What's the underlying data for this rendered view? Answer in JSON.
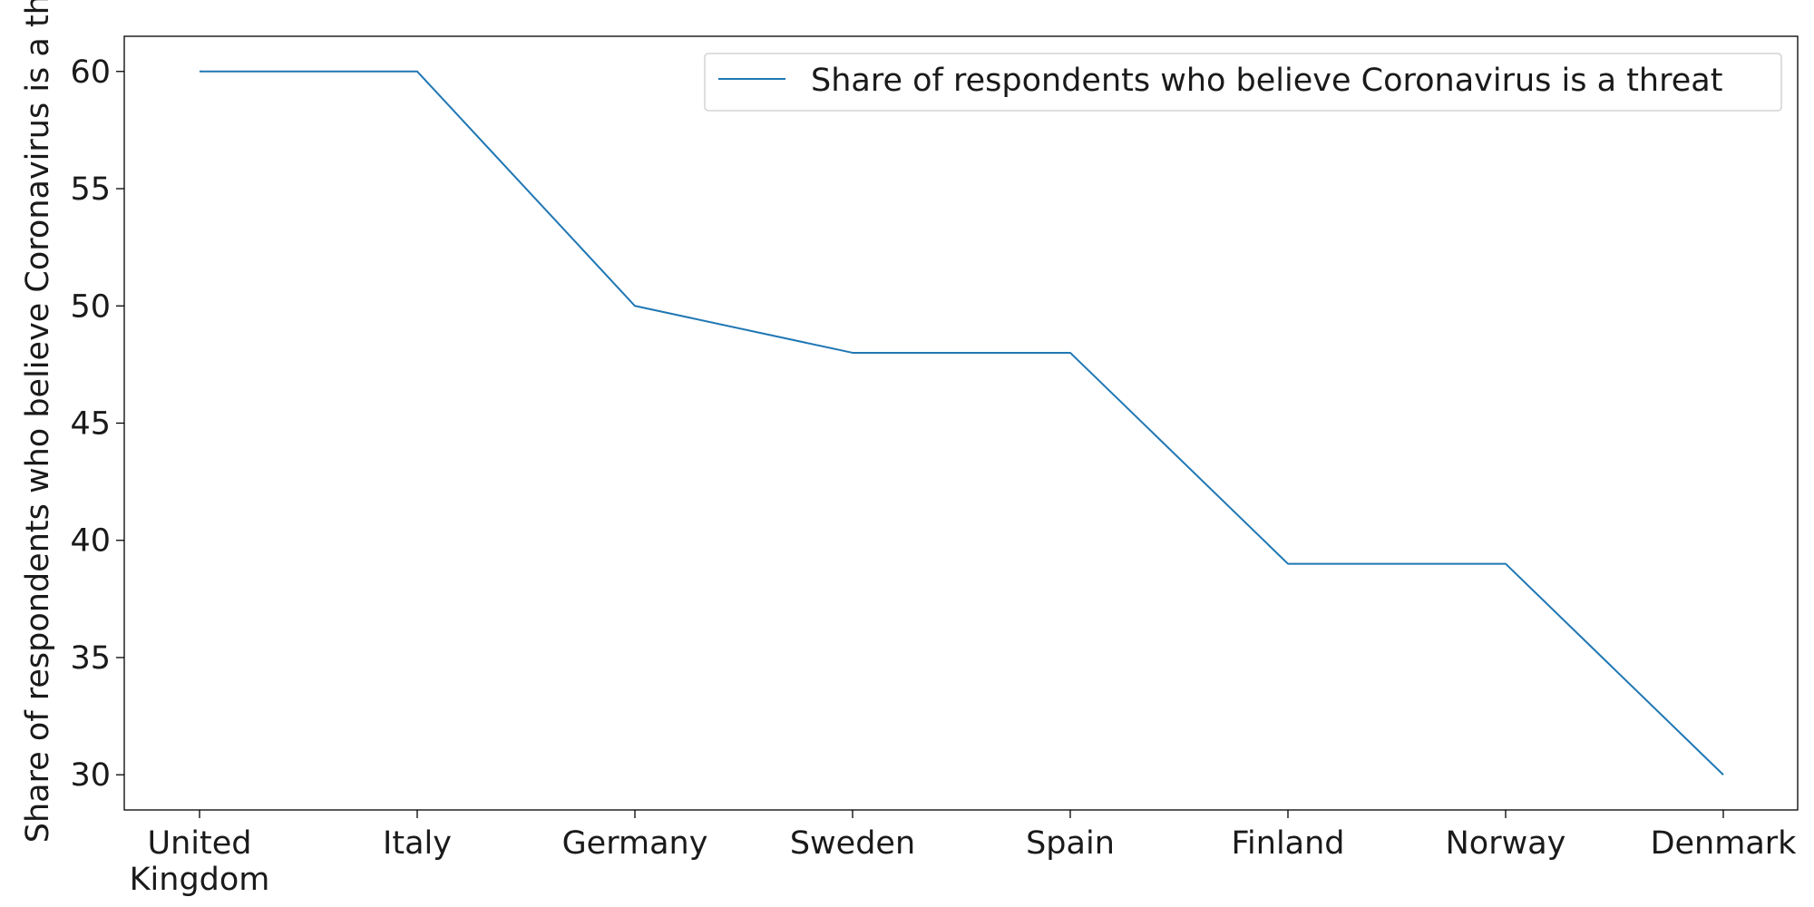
{
  "chart_data": {
    "type": "line",
    "title": "",
    "xlabel": "",
    "ylabel": "Share of respondents who believe Coronavirus is a threat",
    "categories": [
      [
        "United",
        "Kingdom"
      ],
      [
        "Italy"
      ],
      [
        "Germany"
      ],
      [
        "Sweden"
      ],
      [
        "Spain"
      ],
      [
        "Finland"
      ],
      [
        "Norway"
      ],
      [
        "Denmark"
      ]
    ],
    "series": [
      {
        "name": "Share of respondents who believe Coronavirus is a threat",
        "values": [
          60,
          60,
          50,
          48,
          48,
          39,
          39,
          30
        ],
        "color": "#1f77b4"
      }
    ],
    "ylim": [
      28.5,
      61.5
    ],
    "yticks": [
      30,
      35,
      40,
      45,
      50,
      55,
      60
    ],
    "grid": false,
    "legend": "top-right"
  }
}
